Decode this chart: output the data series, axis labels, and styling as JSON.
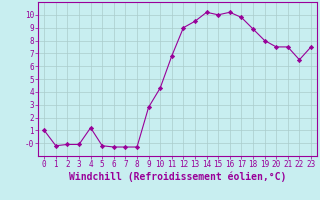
{
  "x": [
    0,
    1,
    2,
    3,
    4,
    5,
    6,
    7,
    8,
    9,
    10,
    11,
    12,
    13,
    14,
    15,
    16,
    17,
    18,
    19,
    20,
    21,
    22,
    23
  ],
  "y": [
    1.0,
    -0.2,
    -0.1,
    -0.1,
    1.2,
    -0.2,
    -0.3,
    -0.3,
    -0.3,
    2.8,
    4.3,
    6.8,
    9.0,
    9.5,
    10.2,
    10.0,
    10.2,
    9.8,
    8.9,
    8.0,
    7.5,
    7.5,
    6.5,
    7.5
  ],
  "line_color": "#990099",
  "marker": "D",
  "marker_size": 2.2,
  "bg_color": "#c8eef0",
  "grid_color": "#aacccc",
  "xlabel": "Windchill (Refroidissement éolien,°C)",
  "xlabel_color": "#990099",
  "ylim": [
    -1,
    11
  ],
  "xlim": [
    -0.5,
    23.5
  ],
  "yticks": [
    0,
    1,
    2,
    3,
    4,
    5,
    6,
    7,
    8,
    9,
    10
  ],
  "ytick_labels": [
    "-0",
    "1",
    "2",
    "3",
    "4",
    "5",
    "6",
    "7",
    "8",
    "9",
    "10"
  ],
  "xtick_labels": [
    "0",
    "1",
    "2",
    "3",
    "4",
    "5",
    "6",
    "7",
    "8",
    "9",
    "10",
    "11",
    "12",
    "13",
    "14",
    "15",
    "16",
    "17",
    "18",
    "19",
    "20",
    "21",
    "22",
    "23"
  ],
  "tick_color": "#990099",
  "tick_fontsize": 5.5,
  "xlabel_fontsize": 7.0,
  "border_color": "#990099"
}
